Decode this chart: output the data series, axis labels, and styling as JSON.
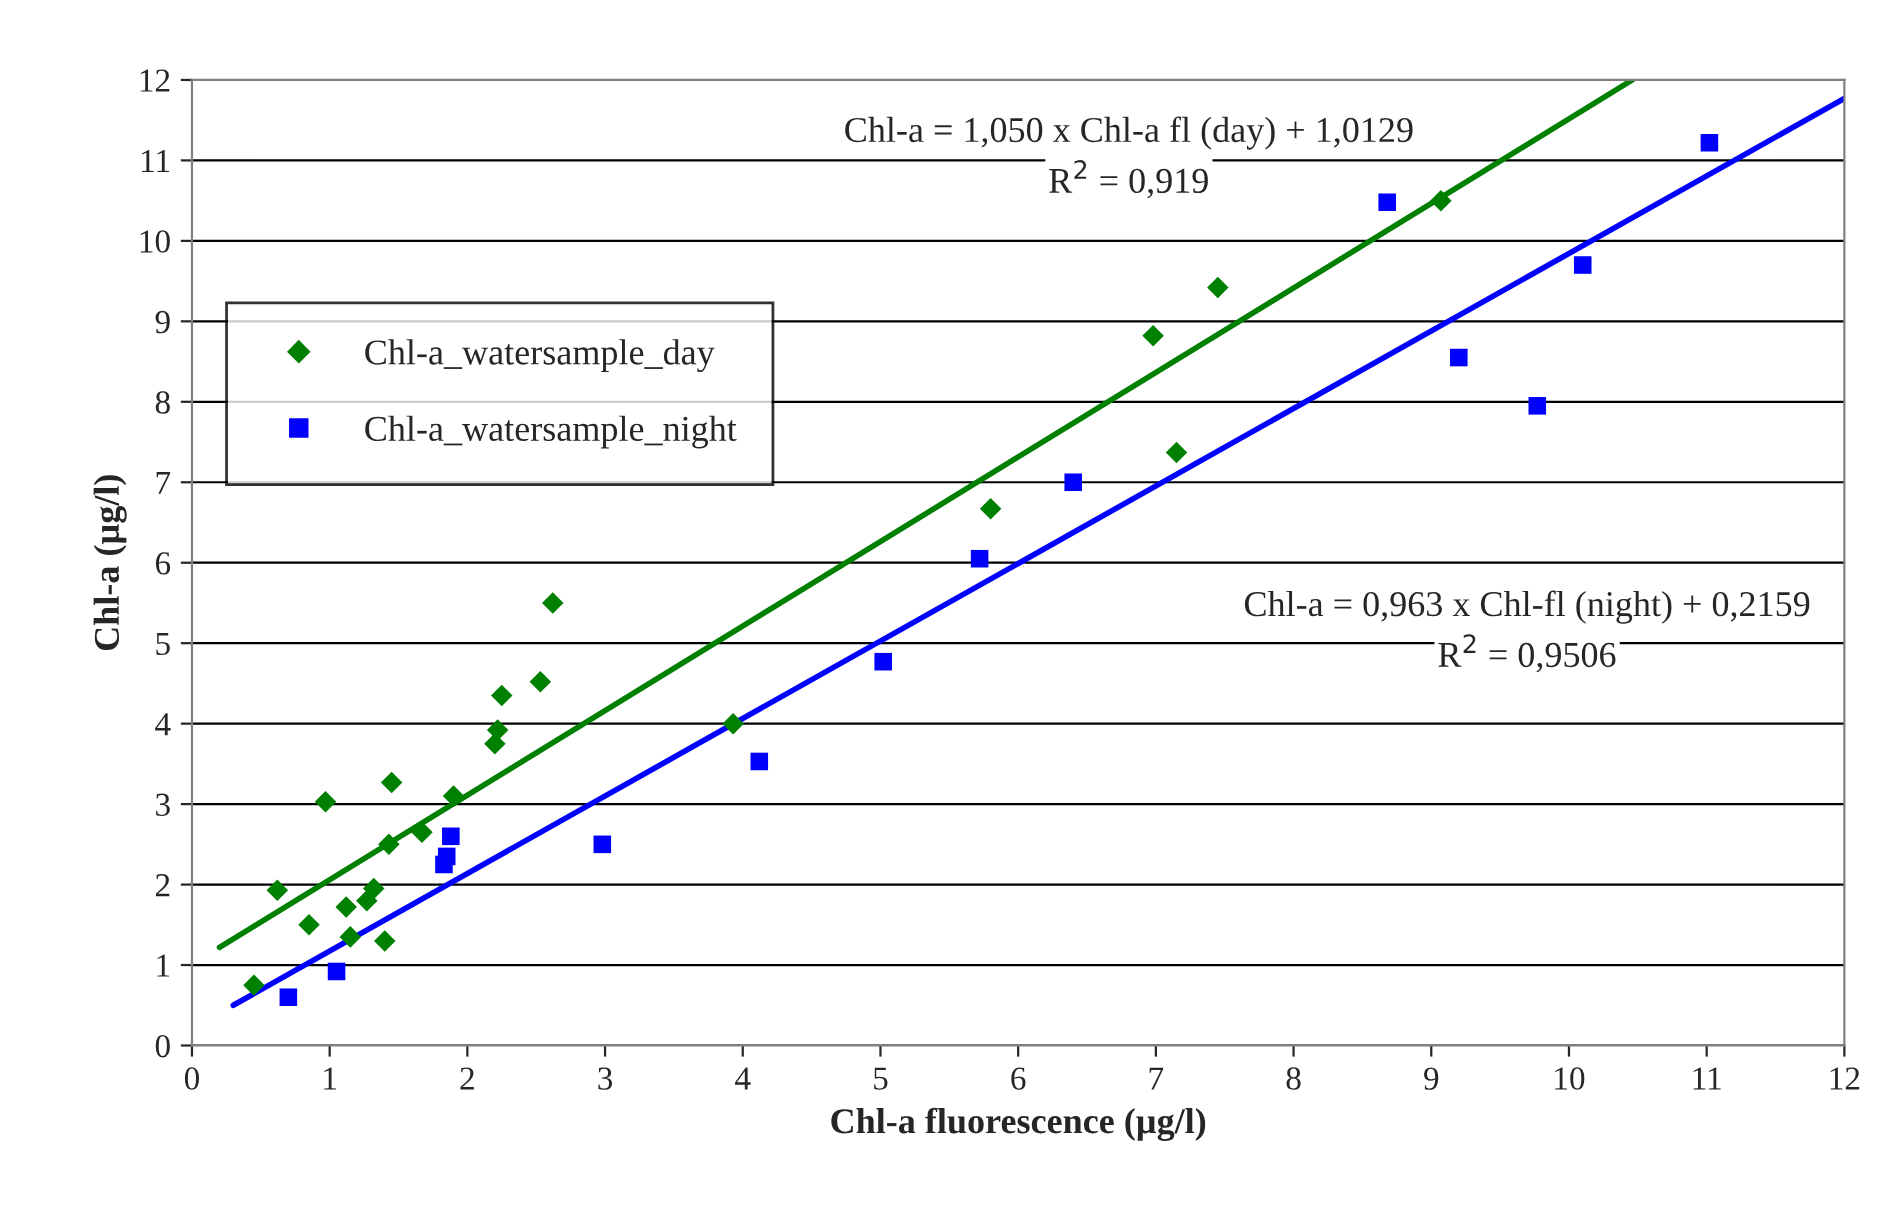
{
  "chart_data": {
    "type": "scatter",
    "xlabel": "Chl-a fluorescence (µg/l)",
    "ylabel": "Chl-a (µg/l)",
    "xlim": [
      0,
      12
    ],
    "ylim": [
      0,
      12
    ],
    "xticks": [
      0,
      1,
      2,
      3,
      4,
      5,
      6,
      7,
      8,
      9,
      10,
      11,
      12
    ],
    "yticks": [
      0,
      1,
      2,
      3,
      4,
      5,
      6,
      7,
      8,
      9,
      10,
      11,
      12
    ],
    "grid": "y",
    "legend": "left",
    "series": [
      {
        "name": "Chl-a_watersample_day",
        "marker": "diamond",
        "color": "#008000",
        "x": [
          0.45,
          0.62,
          0.85,
          0.97,
          1.12,
          1.15,
          1.27,
          1.32,
          1.4,
          1.43,
          1.45,
          1.67,
          1.9,
          2.2,
          2.22,
          2.25,
          2.53,
          2.62,
          3.93,
          5.8,
          6.98,
          7.15,
          7.45,
          9.07
        ],
        "values": [
          0.75,
          1.93,
          1.5,
          3.03,
          1.72,
          1.35,
          1.8,
          1.95,
          1.3,
          2.5,
          3.27,
          2.65,
          3.1,
          3.75,
          3.92,
          4.35,
          4.52,
          5.5,
          4.0,
          6.67,
          8.82,
          7.37,
          9.42,
          10.5
        ]
      },
      {
        "name": "Chl-a_watersample_night",
        "marker": "square",
        "color": "#0000ff",
        "x": [
          0.7,
          1.05,
          1.83,
          1.85,
          1.88,
          2.98,
          4.12,
          5.02,
          5.72,
          6.4,
          8.68,
          9.2,
          9.77,
          10.1,
          11.02
        ],
        "values": [
          0.6,
          0.92,
          2.25,
          2.35,
          2.6,
          2.5,
          3.53,
          4.77,
          6.05,
          7.0,
          10.48,
          8.55,
          7.95,
          9.7,
          11.22
        ]
      },
      {
        "type": "line",
        "line_style": "solid",
        "color": "#008000",
        "x": [
          0.2,
          10.46
        ],
        "values": [
          1.22,
          12.0
        ]
      },
      {
        "type": "line",
        "line_style": "solid",
        "color": "#0000ff",
        "x": [
          0.3,
          12
        ],
        "values": [
          0.5,
          11.77
        ]
      }
    ],
    "annotations": [
      "Chl-a = 1,050 x Chl-a fl (day) + 1,0129",
      "R$^{2}$ = 0,919",
      "Chl-a = 0,963 x Chl-fl (night) + 0,2159",
      "R$^{2}$ = 0,9506"
    ]
  }
}
